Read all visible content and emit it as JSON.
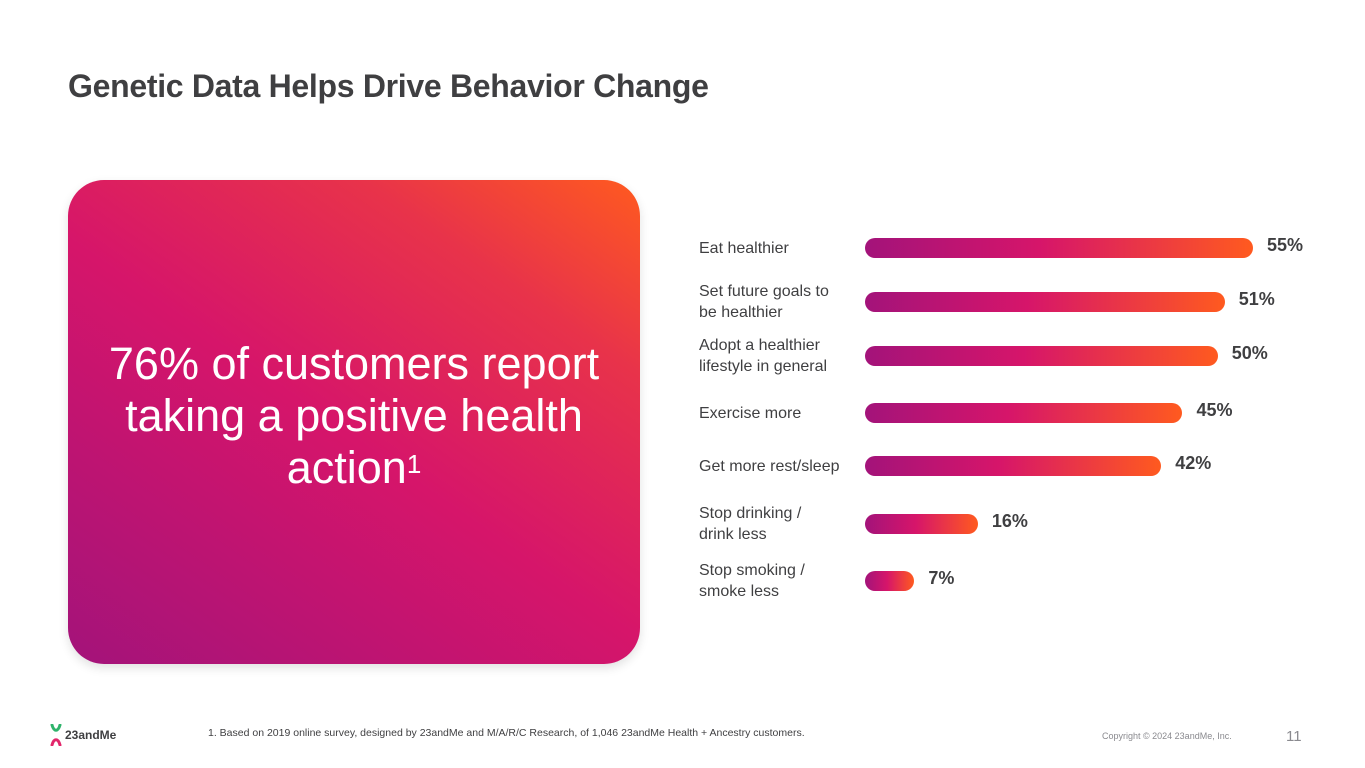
{
  "slide": {
    "title": "Genetic Data Helps Drive Behavior Change",
    "hero_text": "76% of customers report taking a positive health action",
    "hero_superscript": "1",
    "footnote": "1. Based on 2019 online survey, designed by 23andMe and M/A/R/C Research, of 1,046 23andMe Health + Ancestry customers.",
    "copyright": "Copyright © 2024 23andMe, Inc.",
    "page_number": "11",
    "logo_text": "23andMe",
    "logo_icon": "23andme-chromosome-icon"
  },
  "colors": {
    "gradient_start": "#a3137a",
    "gradient_mid": "#d6156a",
    "gradient_end": "#ff5a1f",
    "text": "#3f3f41"
  },
  "chart_data": {
    "type": "bar",
    "orientation": "horizontal",
    "title": "",
    "xlabel": "",
    "ylabel": "",
    "xlim": [
      0,
      55
    ],
    "categories": [
      "Eat healthier",
      "Set future goals to\nbe healthier",
      "Adopt a healthier\nlifestyle in general",
      "Exercise more",
      "Get more rest/sleep",
      "Stop drinking /\ndrink less",
      "Stop smoking /\nsmoke less"
    ],
    "values": [
      55,
      51,
      50,
      45,
      42,
      16,
      7
    ],
    "value_labels": [
      "55%",
      "51%",
      "50%",
      "45%",
      "42%",
      "16%",
      "7%"
    ],
    "unit": "%"
  }
}
